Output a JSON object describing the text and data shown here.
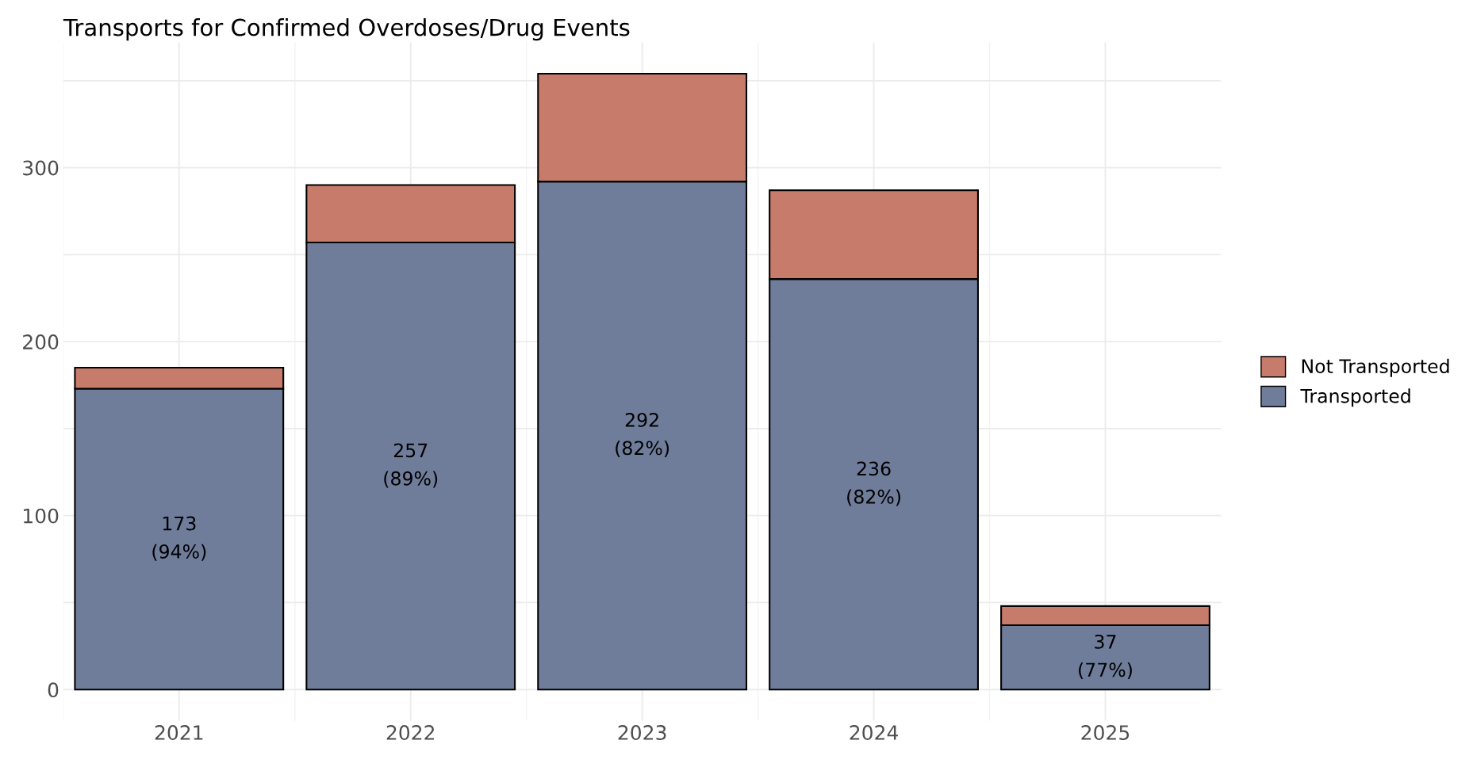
{
  "chart_data": {
    "type": "bar",
    "title": "Transports for Confirmed Overdoses/Drug Events",
    "categories": [
      "2021",
      "2022",
      "2023",
      "2024",
      "2025"
    ],
    "stacked": true,
    "series": [
      {
        "name": "Transported",
        "color": "#6f7d9b",
        "values": [
          173,
          257,
          292,
          236,
          37
        ],
        "value_labels": [
          "173\n(94%)",
          "257\n(89%)",
          "292\n(82%)",
          "236\n(82%)",
          "37\n(77%)"
        ]
      },
      {
        "name": "Not Transported",
        "color": "#c77b6b",
        "values": [
          12,
          33,
          62,
          51,
          11
        ]
      }
    ],
    "ylim": [
      -18,
      372
    ],
    "yticks": [
      0,
      {
        "value": 50,
        "label": null
      },
      100,
      {
        "value": 150,
        "label": null
      },
      200,
      {
        "value": 250,
        "label": null
      },
      300,
      {
        "value": 350,
        "label": null
      }
    ],
    "grid": true,
    "legend": "right"
  }
}
